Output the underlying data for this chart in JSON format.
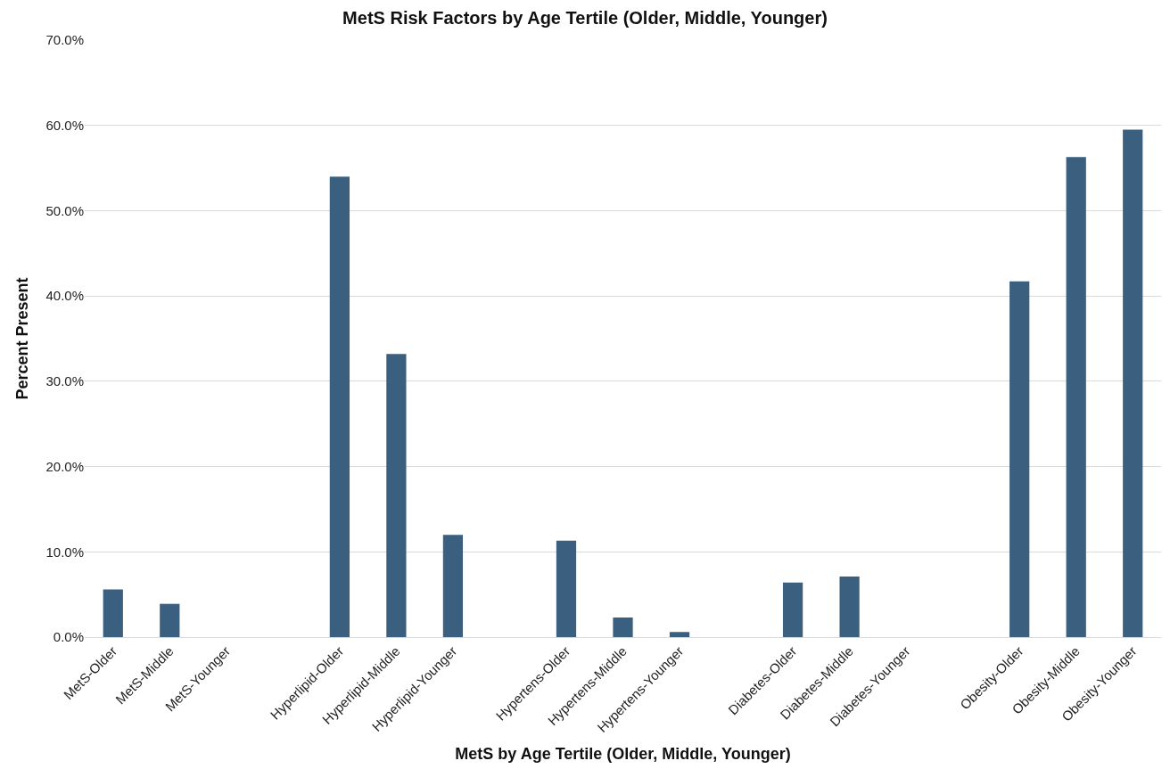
{
  "chart_data": {
    "type": "bar",
    "title": "MetS Risk Factors by Age Tertile (Older, Middle, Younger)",
    "xlabel": "MetS by Age Tertile (Older, Middle, Younger)",
    "ylabel": "Percent Present",
    "categories": [
      "MetS-Older",
      "MetS-Middle",
      "MetS-Younger",
      null,
      "Hyperlipid-Older",
      "Hyperlipid-Middle",
      "Hyperlipid-Younger",
      null,
      "Hypertens-Older",
      "Hypertens-Middle",
      "Hypertens-Younger",
      null,
      "Diabetes-Older",
      "Diabetes-Middle",
      "Diabetes-Younger",
      null,
      "Obesity-Older",
      "Obesity-Middle",
      "Obesity-Younger"
    ],
    "values": [
      5.6,
      3.9,
      0,
      null,
      54.0,
      33.2,
      12.0,
      null,
      11.3,
      2.3,
      0.6,
      null,
      6.4,
      7.1,
      0,
      null,
      41.7,
      56.3,
      59.5
    ],
    "color": "#3a5f7f",
    "ylim": [
      0,
      70
    ],
    "yticks": [
      {
        "value": 0,
        "label": "0.0%"
      },
      {
        "value": 10,
        "label": "10.0%"
      },
      {
        "value": 20,
        "label": "20.0%"
      },
      {
        "value": 30,
        "label": "30.0%"
      },
      {
        "value": 40,
        "label": "40.0%"
      },
      {
        "value": 50,
        "label": "50.0%"
      },
      {
        "value": 60,
        "label": "60.0%"
      },
      {
        "value": 70,
        "label": "70.0%"
      }
    ],
    "grid": "y"
  }
}
